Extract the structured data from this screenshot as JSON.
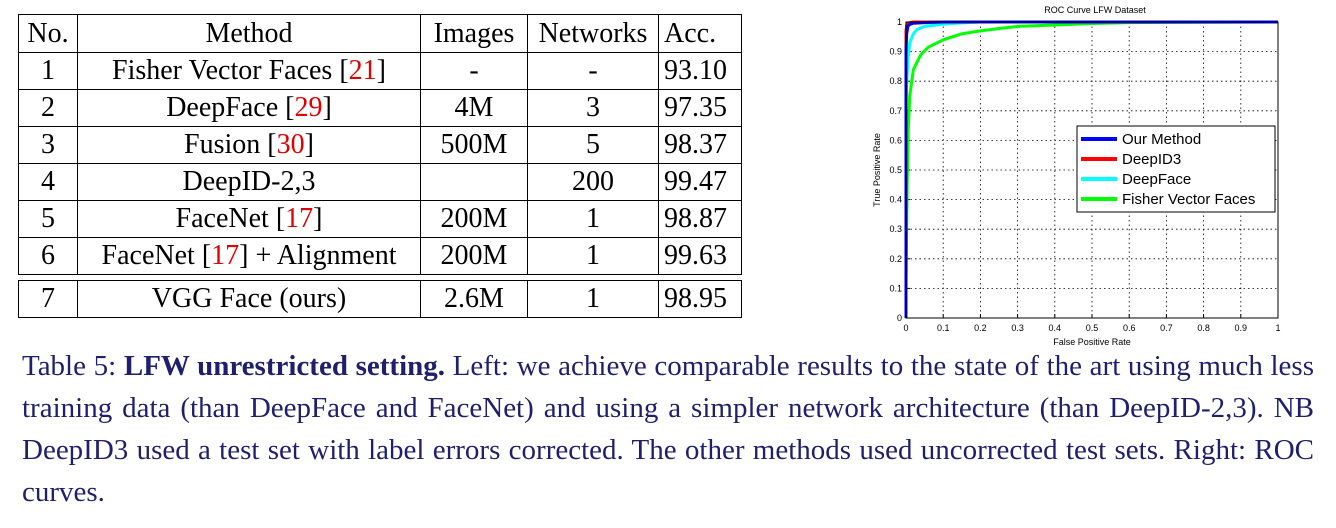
{
  "table": {
    "headers": [
      "No.",
      "Method",
      "Images",
      "Networks",
      "Acc."
    ],
    "rows": [
      {
        "no": "1",
        "method": "Fisher Vector Faces",
        "cite": "21",
        "suffix": "",
        "images": "-",
        "networks": "-",
        "acc": "93.10"
      },
      {
        "no": "2",
        "method": "DeepFace",
        "cite": "29",
        "suffix": "",
        "images": "4M",
        "networks": "3",
        "acc": "97.35"
      },
      {
        "no": "3",
        "method": "Fusion",
        "cite": "30",
        "suffix": "",
        "images": "500M",
        "networks": "5",
        "acc": "98.37"
      },
      {
        "no": "4",
        "method": "DeepID-2,3",
        "cite": "",
        "suffix": "",
        "images": "",
        "networks": "200",
        "acc": "99.47"
      },
      {
        "no": "5",
        "method": "FaceNet",
        "cite": "17",
        "suffix": "",
        "images": "200M",
        "networks": "1",
        "acc": "98.87"
      },
      {
        "no": "6",
        "method": "FaceNet",
        "cite": "17",
        "suffix": " + Alignment",
        "images": "200M",
        "networks": "1",
        "acc": "99.63"
      }
    ],
    "ours": {
      "no": "7",
      "method": "VGG Face (ours)",
      "images": "2.6M",
      "networks": "1",
      "acc": "98.95"
    }
  },
  "chart_data": {
    "type": "line",
    "title": "ROC Curve LFW Dataset",
    "xlabel": "False Positive Rate",
    "ylabel": "True Positive Rate",
    "xlim": [
      0,
      1
    ],
    "ylim": [
      0,
      1
    ],
    "x_ticks": [
      "0",
      "0.1",
      "0.2",
      "0.3",
      "0.4",
      "0.5",
      "0.6",
      "0.7",
      "0.8",
      "0.9",
      "1"
    ],
    "y_ticks": [
      "0",
      "0.1",
      "0.2",
      "0.3",
      "0.4",
      "0.5",
      "0.6",
      "0.7",
      "0.8",
      "0.9",
      "1"
    ],
    "grid": true,
    "legend_position": "center-right",
    "series": [
      {
        "name": "Our Method",
        "color": "#0000ff",
        "x": [
          0,
          0,
          0.002,
          0.005,
          0.01,
          0.02,
          0.05,
          0.1,
          1
        ],
        "y": [
          0,
          0.9,
          0.96,
          0.985,
          0.992,
          0.996,
          0.998,
          1,
          1
        ]
      },
      {
        "name": "DeepID3",
        "color": "#ff0000",
        "x": [
          0,
          0,
          0.002,
          0.005,
          0.01,
          0.02,
          0.05,
          1
        ],
        "y": [
          0,
          0.97,
          0.99,
          0.995,
          0.998,
          1,
          1,
          1
        ]
      },
      {
        "name": "DeepFace",
        "color": "#00ffff",
        "x": [
          0,
          0,
          0.002,
          0.005,
          0.01,
          0.02,
          0.03,
          0.05,
          0.1,
          0.15,
          0.2,
          1
        ],
        "y": [
          0,
          0.7,
          0.8,
          0.87,
          0.93,
          0.96,
          0.975,
          0.985,
          0.993,
          0.997,
          1,
          1
        ]
      },
      {
        "name": "Fisher Vector Faces",
        "color": "#00ff00",
        "x": [
          0,
          0,
          0.003,
          0.006,
          0.01,
          0.02,
          0.04,
          0.06,
          0.1,
          0.15,
          0.2,
          0.25,
          0.3,
          0.4,
          0.5,
          0.6,
          1
        ],
        "y": [
          0,
          0.1,
          0.45,
          0.63,
          0.75,
          0.84,
          0.89,
          0.915,
          0.94,
          0.96,
          0.97,
          0.978,
          0.985,
          0.99,
          0.995,
          0.998,
          1
        ]
      }
    ]
  },
  "caption": {
    "label": "Table 5: ",
    "bold": "LFW unrestricted setting.",
    "text": " Left: we achieve comparable results to the state of the art using much less training data (than DeepFace and FaceNet) and using a simpler network architecture (than DeepID-2,3). NB DeepID3 used a test set with label errors corrected. The other methods used uncorrected test sets. Right: ROC curves."
  }
}
